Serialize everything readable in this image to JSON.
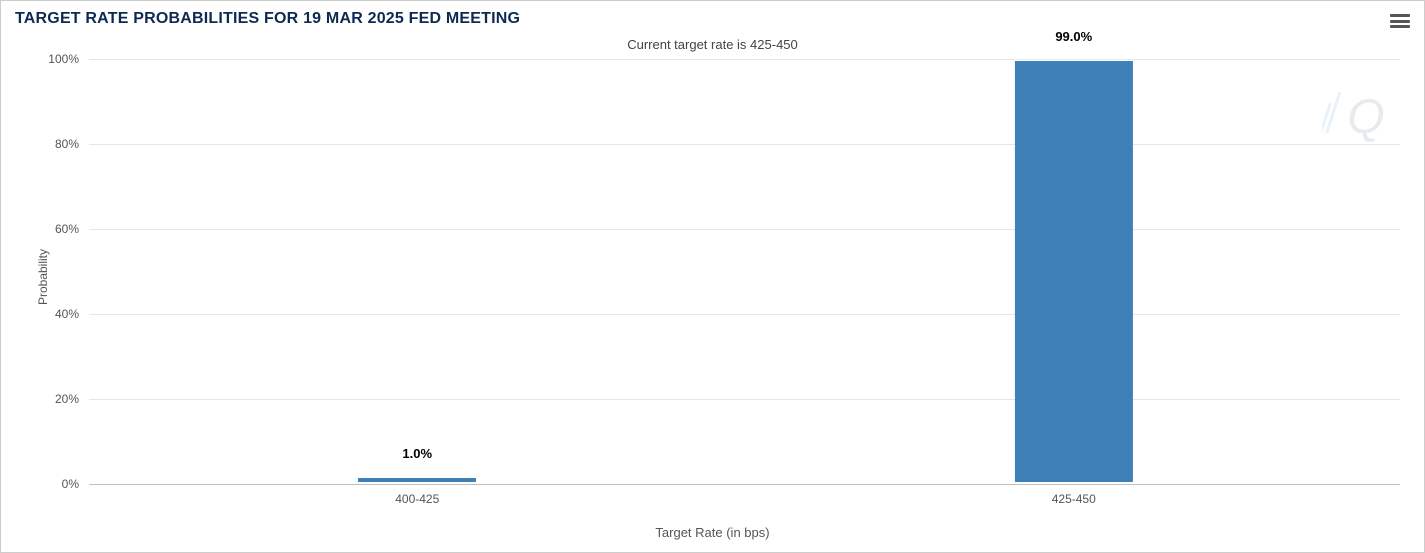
{
  "chart": {
    "title": "TARGET RATE PROBABILITIES FOR 19 MAR 2025 FED MEETING",
    "subtitle": "Current target rate is 425-450",
    "type": "bar",
    "x_axis": {
      "title": "Target Rate (in bps)",
      "categories": [
        "400-425",
        "425-450"
      ],
      "label_fontsize": 12,
      "label_color": "#555555"
    },
    "y_axis": {
      "title": "Probability",
      "min": 0,
      "max": 100,
      "tick_step": 20,
      "tick_suffix": "%",
      "label_fontsize": 12,
      "label_color": "#555555"
    },
    "series": {
      "values": [
        1.0,
        99.0
      ],
      "data_label_suffix": "%",
      "bar_color": "#3e80b8",
      "bar_width_fraction": 0.18,
      "data_label_color": "#000000",
      "data_label_stroke": "#ffffff",
      "data_label_fontsize": 13
    },
    "style": {
      "background_color": "#ffffff",
      "grid_color": "#e6e6e6",
      "zero_line_color": "#bfbfbf",
      "title_color": "#0e2a53",
      "title_fontsize": 16,
      "subtitle_color": "#444444",
      "subtitle_fontsize": 13,
      "border_color": "#cccccc"
    },
    "menu": {
      "tooltip": "Chart context menu"
    },
    "watermark": {
      "letter": "Q",
      "color": "#b0b8c0",
      "stripe_color": "#6aa3d0"
    }
  }
}
